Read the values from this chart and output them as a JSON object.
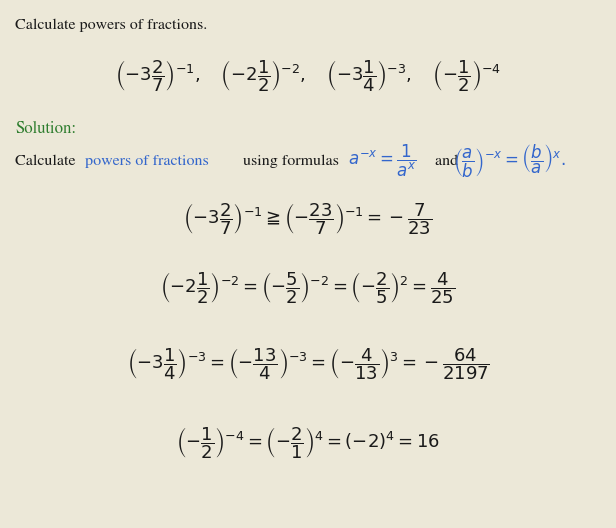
{
  "background_color": "#ece8d8",
  "text_color": "#1a1a1a",
  "green_color": "#2e7d2e",
  "blue_color": "#3366cc",
  "figsize": [
    6.16,
    5.28
  ],
  "dpi": 100,
  "title_text": "Calculate powers of fractions.",
  "solution_label": "Solution:",
  "calc_prefix": "Calculate ",
  "calc_blue": "powers of fractions",
  "calc_suffix": " using formulas ",
  "formula1": "$a^{-x} = \\dfrac{1}{a^x}$",
  "and_text": " and ",
  "formula2": "$\\left(\\dfrac{a}{b}\\right)^{-x} = \\left(\\dfrac{b}{a}\\right)^{x}.$",
  "problem": "$\\left(-3\\dfrac{2}{7}\\right)^{-1},\\quad\\left(-2\\dfrac{1}{2}\\right)^{-2},\\quad\\left(-3\\dfrac{1}{4}\\right)^{-3},\\quad\\left(-\\dfrac{1}{2}\\right)^{-4}$",
  "step1": "$\\left(-3\\dfrac{2}{7}\\right)^{-1} \\geqq \\left(-\\dfrac{23}{7}\\right)^{-1} = -\\dfrac{7}{23}$",
  "step2": "$\\left(-2\\dfrac{1}{2}\\right)^{-2} = \\left(-\\dfrac{5}{2}\\right)^{-2} = \\left(-\\dfrac{2}{5}\\right)^{2} = \\dfrac{4}{25}$",
  "step3": "$\\left(-3\\dfrac{1}{4}\\right)^{-3} = \\left(-\\dfrac{13}{4}\\right)^{-3} = \\left(-\\dfrac{4}{13}\\right)^{3} = -\\dfrac{64}{2197}$",
  "step4": "$\\left(-\\dfrac{1}{2}\\right)^{-4} = \\left(-\\dfrac{2}{1}\\right)^{4} = (-2)^{4} = 16$"
}
